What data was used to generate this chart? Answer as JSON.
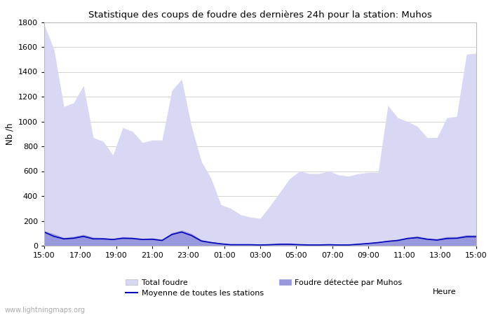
{
  "title": "Statistique des coups de foudre des dernières 24h pour la station: Muhos",
  "xlabel": "Heure",
  "ylabel": "Nb /h",
  "ylim": [
    0,
    1800
  ],
  "yticks": [
    0,
    200,
    400,
    600,
    800,
    1000,
    1200,
    1400,
    1600,
    1800
  ],
  "x_labels": [
    "15:00",
    "17:00",
    "19:00",
    "21:00",
    "23:00",
    "01:00",
    "03:00",
    "05:00",
    "07:00",
    "09:00",
    "11:00",
    "13:00",
    "15:00"
  ],
  "total_foudre_color": "#d8d8f5",
  "muhos_color": "#9898dd",
  "moyenne_color": "#0000bb",
  "background_color": "#ffffff",
  "watermark": "www.lightningmaps.org",
  "total_foudre": [
    1780,
    1580,
    1120,
    1150,
    1290,
    870,
    840,
    730,
    950,
    920,
    830,
    850,
    850,
    1250,
    1340,
    960,
    680,
    540,
    330,
    300,
    250,
    230,
    220,
    320,
    430,
    540,
    600,
    580,
    580,
    600,
    570,
    560,
    580,
    590,
    590,
    1130,
    1030,
    1000,
    960,
    870,
    870,
    1030,
    1040,
    1540,
    1550
  ],
  "muhos": [
    120,
    95,
    65,
    75,
    90,
    68,
    65,
    58,
    72,
    68,
    58,
    62,
    52,
    105,
    125,
    98,
    48,
    32,
    22,
    12,
    10,
    10,
    8,
    10,
    15,
    15,
    10,
    8,
    8,
    10,
    8,
    8,
    15,
    22,
    32,
    42,
    52,
    68,
    78,
    62,
    57,
    72,
    72,
    87,
    87
  ],
  "moyenne": [
    110,
    75,
    55,
    60,
    75,
    55,
    55,
    50,
    60,
    58,
    50,
    52,
    42,
    90,
    110,
    82,
    38,
    25,
    15,
    8,
    8,
    8,
    6,
    8,
    12,
    12,
    8,
    6,
    6,
    8,
    6,
    6,
    12,
    18,
    25,
    35,
    42,
    58,
    65,
    52,
    45,
    58,
    60,
    72,
    72
  ]
}
